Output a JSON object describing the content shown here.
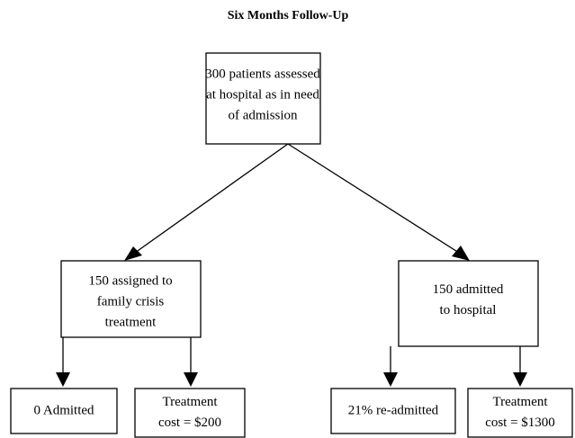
{
  "title": "Six Months Follow-Up",
  "nodes": [
    {
      "lines": [
        "300 patients assessed",
        "at hospital as in need",
        "of admission"
      ]
    },
    {
      "lines": [
        "150 assigned to",
        "family crisis",
        "treatment"
      ]
    },
    {
      "lines": [
        "150 admitted",
        "to hospital"
      ]
    },
    {
      "lines": [
        "0 Admitted"
      ]
    },
    {
      "lines": [
        "Treatment",
        "cost = $200"
      ]
    },
    {
      "lines": [
        "21% re-admitted"
      ]
    },
    {
      "lines": [
        "Treatment",
        "cost = $1300"
      ]
    }
  ]
}
